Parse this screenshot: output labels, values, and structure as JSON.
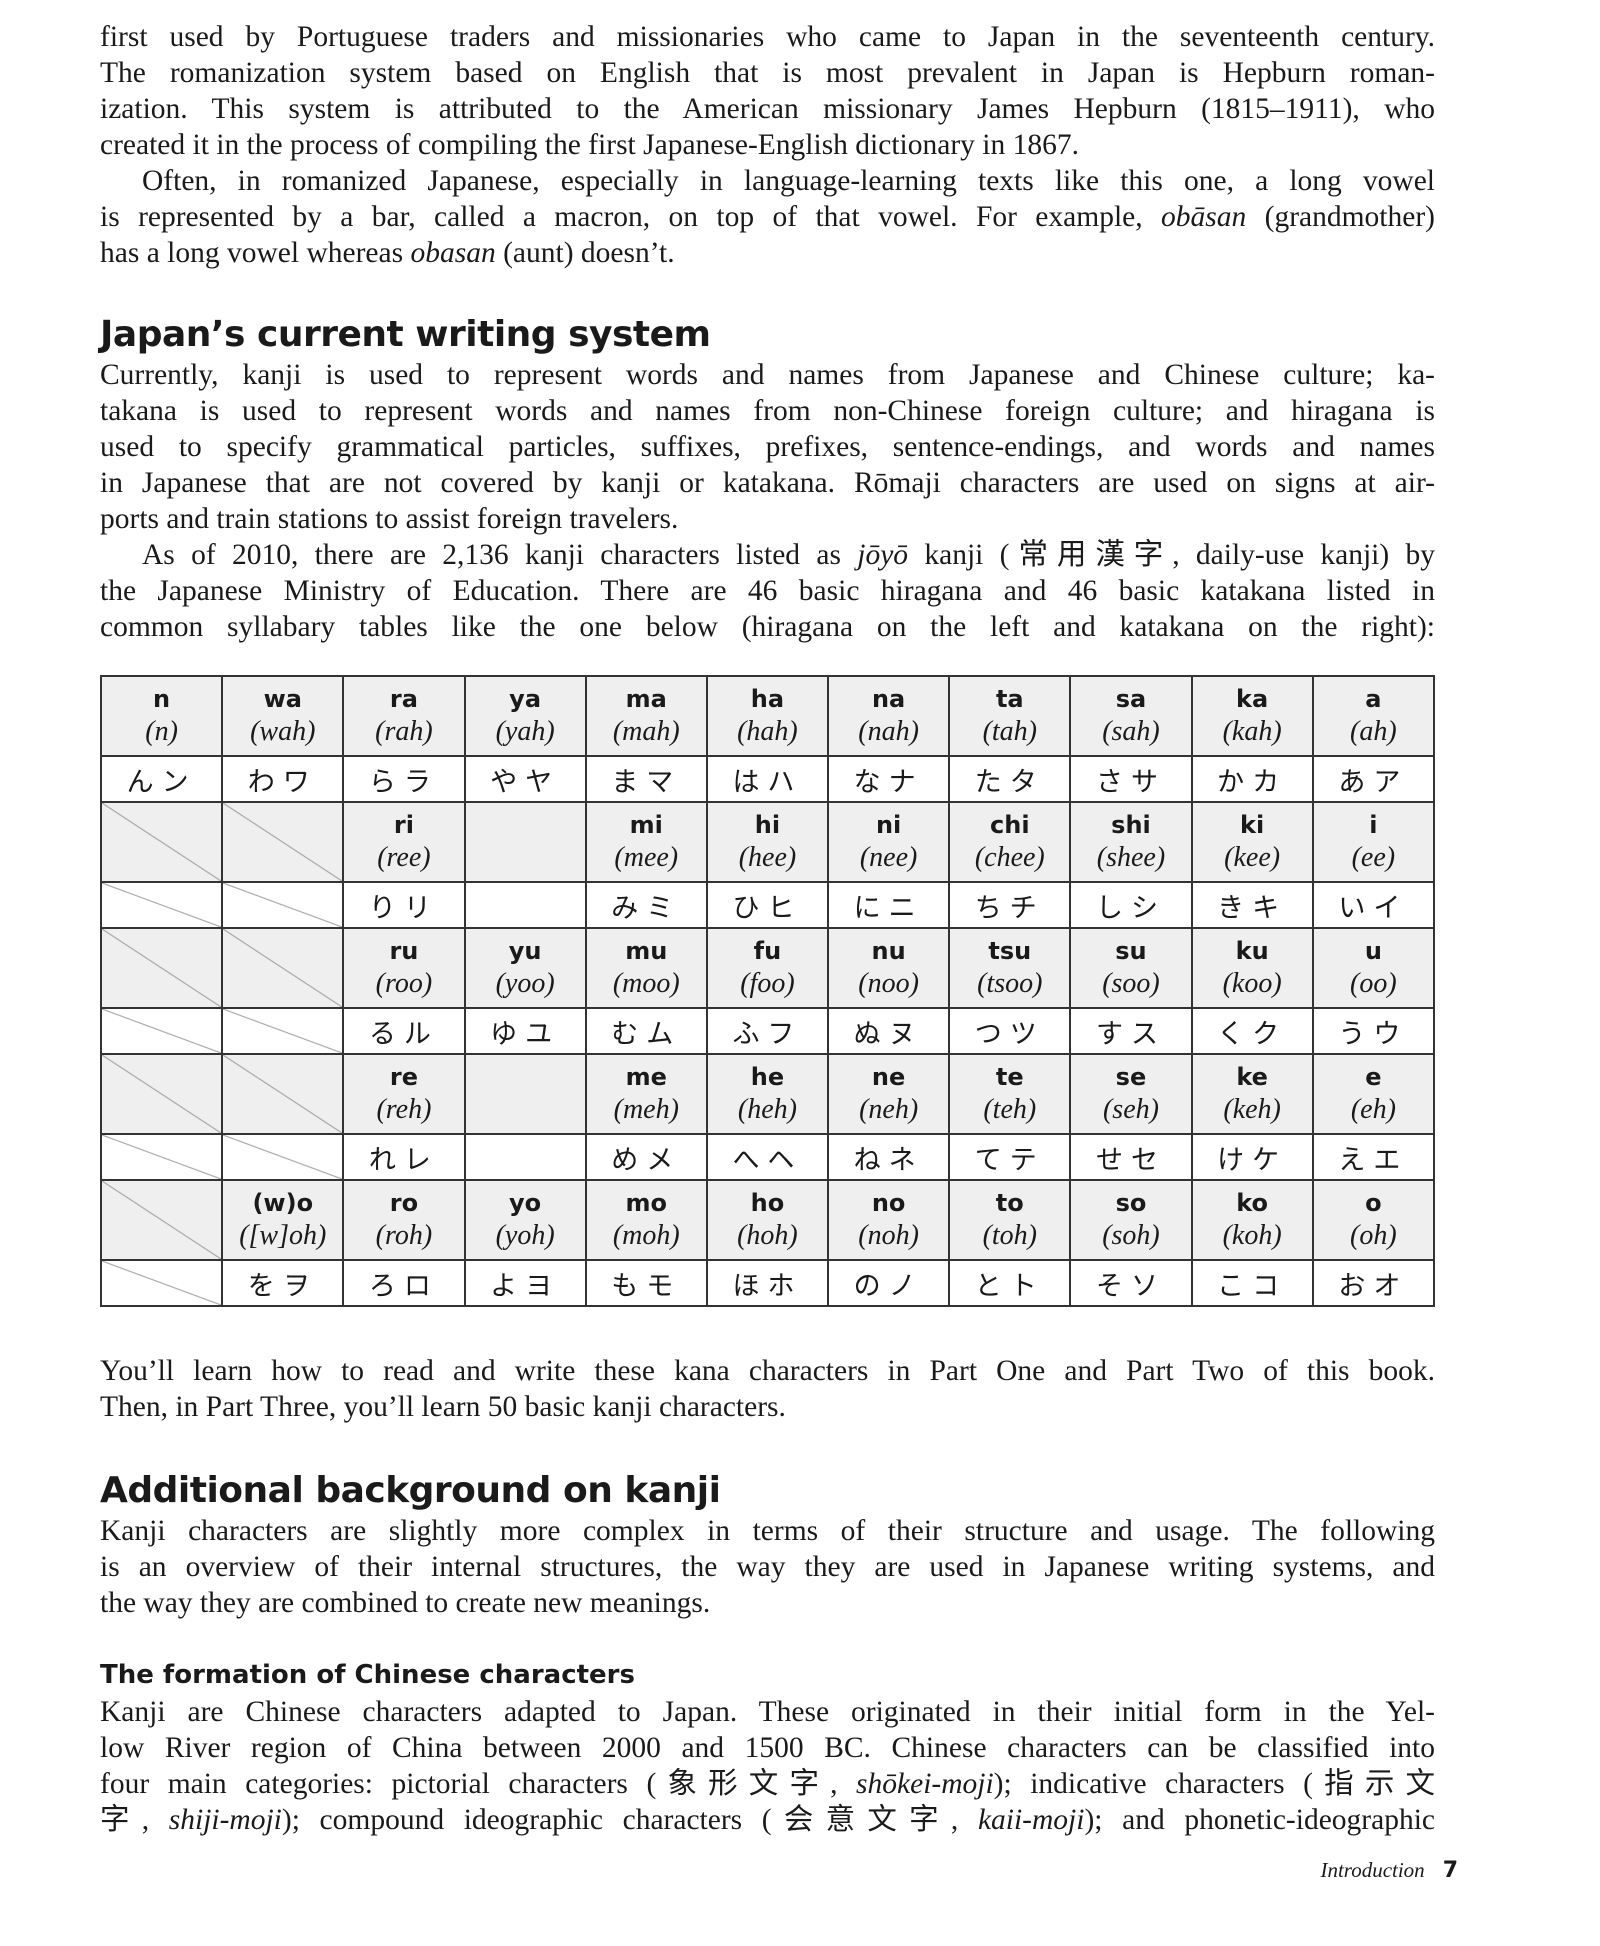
{
  "paragraphs": {
    "p1": [
      {
        "indent": false,
        "segs": [
          "first used by Portuguese traders and missionaries who came to Japan in the seventeenth century."
        ]
      },
      {
        "indent": false,
        "segs": [
          "The romanization system based on English that is most prevalent in Japan is Hepburn roman-"
        ]
      },
      {
        "indent": false,
        "segs": [
          "ization. This system is attributed to the American missionary James Hepburn (1815–1911), who"
        ]
      },
      {
        "indent": false,
        "last": true,
        "segs": [
          "created it in the process of compiling the first Japanese-English dictionary in 1867."
        ]
      },
      {
        "indent": true,
        "segs": [
          "Often, in romanized Japanese, especially in language-learning texts like this one, a long vowel"
        ]
      },
      {
        "indent": false,
        "segs": [
          "is represented by a bar, called a macron, on top of that vowel. For example, ",
          {
            "t": "obāsan",
            "i": true
          },
          " (grandmother)"
        ]
      },
      {
        "indent": false,
        "last": true,
        "segs": [
          "has a long vowel whereas ",
          {
            "t": "obasan",
            "i": true
          },
          " (aunt) doesn’t."
        ]
      }
    ],
    "p3": [
      {
        "indent": false,
        "segs": [
          "Currently, kanji is used to represent words and names from Japanese and Chinese culture; ka-"
        ]
      },
      {
        "indent": false,
        "segs": [
          "takana is used to represent words and names from non-Chinese foreign culture; and hiragana is"
        ]
      },
      {
        "indent": false,
        "segs": [
          "used to specify grammatical particles, suffixes, prefixes, sentence-endings, and words and names"
        ]
      },
      {
        "indent": false,
        "segs": [
          "in Japanese that are not covered by kanji or katakana. Rōmaji characters are used on signs at air-"
        ]
      },
      {
        "indent": false,
        "last": true,
        "segs": [
          "ports and train stations to assist foreign travelers."
        ]
      },
      {
        "indent": true,
        "segs": [
          "As of 2010, there are 2,136 kanji characters listed as ",
          {
            "t": "jōyō",
            "i": true
          },
          " kanji (常用漢字, daily-use kanji) by"
        ]
      },
      {
        "indent": false,
        "segs": [
          "the Japanese Ministry of Education. There are 46 basic hiragana and 46 basic katakana listed in"
        ]
      },
      {
        "indent": false,
        "segs": [
          "common syllabary tables like the one below (hiragana on the left and katakana on the right):"
        ]
      }
    ],
    "p5": [
      {
        "indent": false,
        "segs": [
          "You’ll learn how to read and write these kana characters in Part One and Part Two of this book."
        ]
      },
      {
        "indent": false,
        "last": true,
        "segs": [
          "Then, in Part Three, you’ll learn 50 basic kanji characters."
        ]
      }
    ],
    "p6": [
      {
        "indent": false,
        "segs": [
          "Kanji characters are slightly more complex in terms of their structure and usage. The following"
        ]
      },
      {
        "indent": false,
        "segs": [
          "is an overview of their internal structures, the way they are used in Japanese writing systems, and"
        ]
      },
      {
        "indent": false,
        "last": true,
        "segs": [
          "the way they are combined to create new meanings."
        ]
      }
    ],
    "p7": [
      {
        "indent": false,
        "segs": [
          "Kanji are Chinese characters adapted to Japan. These originated in their initial form in the Yel-"
        ]
      },
      {
        "indent": false,
        "segs": [
          "low River region of China between 2000 and 1500 BC. Chinese characters can be classified into"
        ]
      },
      {
        "indent": false,
        "segs": [
          "four main categories: pictorial characters (象形文字, ",
          {
            "t": "shōkei-moji",
            "i": true
          },
          "); indicative characters (指示文"
        ]
      },
      {
        "indent": false,
        "segs": [
          "字, ",
          {
            "t": "shiji-moji",
            "i": true
          },
          "); compound ideographic characters (会意文字, ",
          {
            "t": "kaii-moji",
            "i": true
          },
          "); and phonetic-ideographic"
        ]
      }
    ]
  },
  "headings": {
    "current_writing": "Japan’s current writing system",
    "additional_background": "Additional background on kanji",
    "formation": "The formation of Chinese characters"
  },
  "kana_table": {
    "rows": [
      {
        "type": "romaji",
        "cells": [
          [
            "n",
            "(n)"
          ],
          [
            "wa",
            "(wah)"
          ],
          [
            "ra",
            "(rah)"
          ],
          [
            "ya",
            "(yah)"
          ],
          [
            "ma",
            "(mah)"
          ],
          [
            "ha",
            "(hah)"
          ],
          [
            "na",
            "(nah)"
          ],
          [
            "ta",
            "(tah)"
          ],
          [
            "sa",
            "(sah)"
          ],
          [
            "ka",
            "(kah)"
          ],
          [
            "a",
            "(ah)"
          ]
        ]
      },
      {
        "type": "kana",
        "cells": [
          "んン",
          "わワ",
          "らラ",
          "やヤ",
          "まマ",
          "はハ",
          "なナ",
          "たタ",
          "さサ",
          "かカ",
          "あア"
        ]
      },
      {
        "type": "romaji",
        "cells": [
          null,
          null,
          [
            "ri",
            "(ree)"
          ],
          "",
          [
            "mi",
            "(mee)"
          ],
          [
            "hi",
            "(hee)"
          ],
          [
            "ni",
            "(nee)"
          ],
          [
            "chi",
            "(chee)"
          ],
          [
            "shi",
            "(shee)"
          ],
          [
            "ki",
            "(kee)"
          ],
          [
            "i",
            "(ee)"
          ]
        ]
      },
      {
        "type": "kana",
        "cells": [
          null,
          null,
          "りリ",
          "",
          "みミ",
          "ひヒ",
          "にニ",
          "ちチ",
          "しシ",
          "きキ",
          "いイ"
        ]
      },
      {
        "type": "romaji",
        "cells": [
          null,
          null,
          [
            "ru",
            "(roo)"
          ],
          [
            "yu",
            "(yoo)"
          ],
          [
            "mu",
            "(moo)"
          ],
          [
            "fu",
            "(foo)"
          ],
          [
            "nu",
            "(noo)"
          ],
          [
            "tsu",
            "(tsoo)"
          ],
          [
            "su",
            "(soo)"
          ],
          [
            "ku",
            "(koo)"
          ],
          [
            "u",
            "(oo)"
          ]
        ]
      },
      {
        "type": "kana",
        "cells": [
          null,
          null,
          "るル",
          "ゆユ",
          "むム",
          "ふフ",
          "ぬヌ",
          "つツ",
          "すス",
          "くク",
          "うウ"
        ]
      },
      {
        "type": "romaji",
        "cells": [
          null,
          null,
          [
            "re",
            "(reh)"
          ],
          "",
          [
            "me",
            "(meh)"
          ],
          [
            "he",
            "(heh)"
          ],
          [
            "ne",
            "(neh)"
          ],
          [
            "te",
            "(teh)"
          ],
          [
            "se",
            "(seh)"
          ],
          [
            "ke",
            "(keh)"
          ],
          [
            "e",
            "(eh)"
          ]
        ]
      },
      {
        "type": "kana",
        "cells": [
          null,
          null,
          "れレ",
          "",
          "めメ",
          "へヘ",
          "ねネ",
          "てテ",
          "せセ",
          "けケ",
          "えエ"
        ]
      },
      {
        "type": "romaji",
        "cells": [
          null,
          [
            "(w)o",
            "([w]oh)"
          ],
          [
            "ro",
            "(roh)"
          ],
          [
            "yo",
            "(yoh)"
          ],
          [
            "mo",
            "(moh)"
          ],
          [
            "ho",
            "(hoh)"
          ],
          [
            "no",
            "(noh)"
          ],
          [
            "to",
            "(toh)"
          ],
          [
            "so",
            "(soh)"
          ],
          [
            "ko",
            "(koh)"
          ],
          [
            "o",
            "(oh)"
          ]
        ]
      },
      {
        "type": "kana",
        "cells": [
          null,
          "をヲ",
          "ろロ",
          "よヨ",
          "もモ",
          "ほホ",
          "のノ",
          "とト",
          "そソ",
          "こコ",
          "おオ"
        ]
      }
    ]
  },
  "footer": {
    "section": "Introduction",
    "page": "7"
  }
}
